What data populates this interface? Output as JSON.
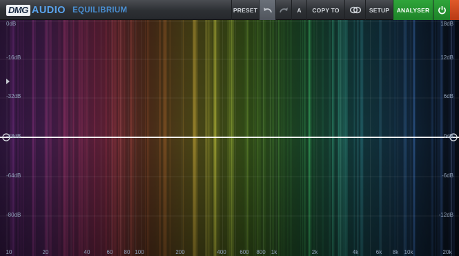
{
  "brand": {
    "logo": "DMG",
    "sub": "AUDIO",
    "product": "EQUILIBRIUM"
  },
  "toolbar": {
    "preset": "PRESET",
    "undo_icon": "undo-arrow-icon",
    "redo_icon": "redo-arrow-icon",
    "ab": "A",
    "copy_to": "COPY TO",
    "link_icon": "link-rings-icon",
    "setup": "SETUP",
    "analyser": "ANALYSER",
    "power_icon": "power-icon",
    "analyser_color": "#2aa034"
  },
  "display": {
    "left_axis": [
      "0dB",
      "-16dB",
      "-32dB",
      "-48dB",
      "-64dB",
      "-80dB"
    ],
    "right_axis": [
      "18dB",
      "12dB",
      "6dB",
      "0dB",
      "-6dB",
      "-12dB"
    ],
    "freq_labels": [
      "10",
      "20",
      "40",
      "60",
      "80",
      "100",
      "200",
      "400",
      "600",
      "800",
      "1k",
      "2k",
      "4k",
      "6k",
      "8k",
      "10k",
      "20k"
    ],
    "eq_gain_db": 0,
    "curve_color": "#ffffff"
  }
}
